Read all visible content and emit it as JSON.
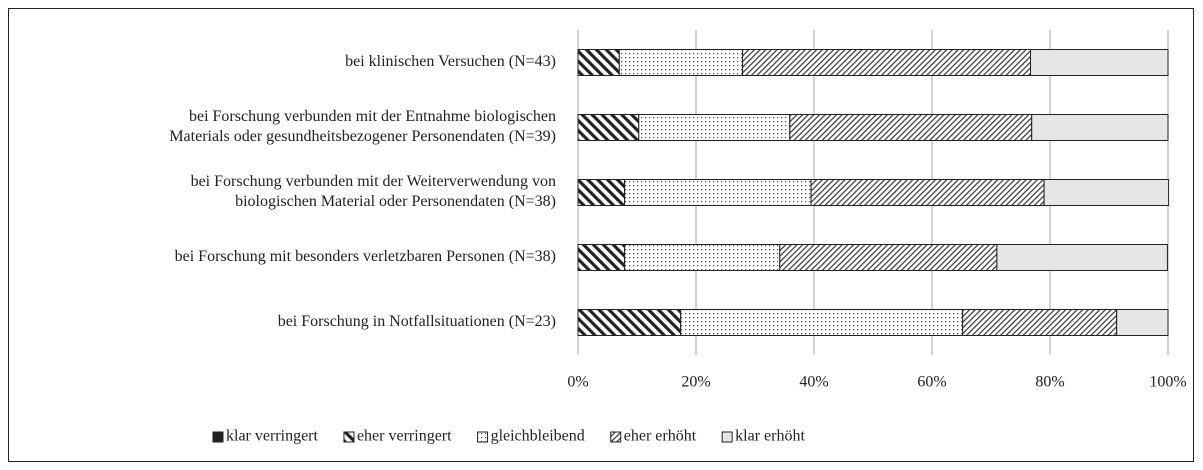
{
  "chart_data": {
    "type": "stacked-barh",
    "categories": [
      [
        "bei klinischen Versuchen (N=43)"
      ],
      [
        "bei Forschung verbunden mit der Entnahme biologischen",
        "Materials oder gesundheitsbezogener Personendaten (N=39)"
      ],
      [
        "bei Forschung verbunden mit der Weiterverwendung von",
        "biologischen Material oder Personendaten (N=38)"
      ],
      [
        "bei Forschung mit besonders verletzbaren Personen (N=38)"
      ],
      [
        "bei Forschung in Notfallsituationen (N=23)"
      ]
    ],
    "series": [
      {
        "name": "klar verringert",
        "color": "#222222",
        "pattern": "solid",
        "values": [
          0,
          0,
          0,
          0,
          0
        ]
      },
      {
        "name": "eher verringert",
        "color": "#222222",
        "pattern": "hatch-back",
        "values": [
          7.0,
          10.3,
          7.9,
          7.9,
          17.4
        ]
      },
      {
        "name": "gleichbleibend",
        "color": "#222222",
        "pattern": "dots",
        "values": [
          20.9,
          25.6,
          31.6,
          26.3,
          47.8
        ]
      },
      {
        "name": "eher erhöht",
        "color": "#222222",
        "pattern": "hatch-fine",
        "values": [
          48.8,
          41.0,
          39.5,
          36.8,
          26.1
        ]
      },
      {
        "name": "klar erhöht",
        "color": "#e6e6e6",
        "pattern": "solid",
        "values": [
          23.3,
          23.1,
          21.1,
          28.9,
          8.7
        ]
      }
    ],
    "xlim": [
      0,
      100
    ],
    "xticks": [
      {
        "value": 0,
        "label": "0%"
      },
      {
        "value": 20,
        "label": "20%"
      },
      {
        "value": 40,
        "label": "40%"
      },
      {
        "value": 60,
        "label": "60%"
      },
      {
        "value": 80,
        "label": "80%"
      },
      {
        "value": 100,
        "label": "100%"
      }
    ],
    "grid": true,
    "legend": "bottom"
  }
}
